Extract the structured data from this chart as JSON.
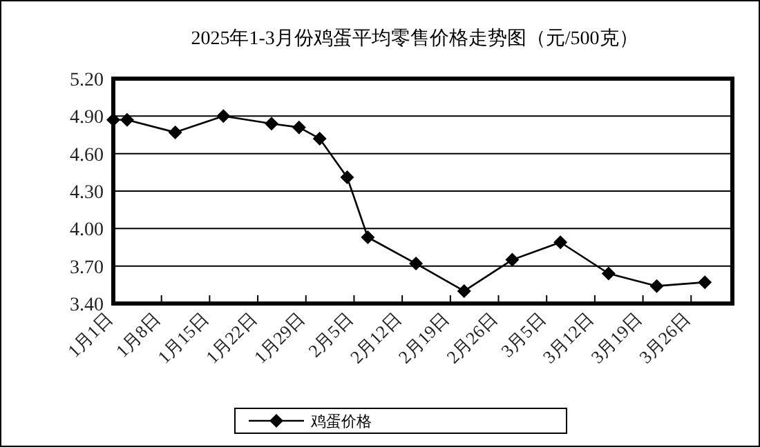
{
  "chart_data": {
    "type": "line",
    "title": "2025年1-3月份鸡蛋平均零售价格走势图（元/500克）",
    "x": [
      "2025-01-01",
      "2025-01-03",
      "2025-01-10",
      "2025-01-17",
      "2025-01-24",
      "2025-01-28",
      "2025-01-31",
      "2025-02-04",
      "2025-02-07",
      "2025-02-14",
      "2025-02-21",
      "2025-02-28",
      "2025-03-07",
      "2025-03-14",
      "2025-03-21",
      "2025-03-28"
    ],
    "series": [
      {
        "name": "鸡蛋价格",
        "color": "#000000",
        "values": [
          4.87,
          4.87,
          4.77,
          4.9,
          4.84,
          4.81,
          4.72,
          4.41,
          3.93,
          3.72,
          3.5,
          3.75,
          3.89,
          3.64,
          3.54,
          3.57
        ]
      }
    ],
    "xlim": [
      "2025-01-01",
      "2025-04-01"
    ],
    "xticks": [
      {
        "value": "2025-01-01",
        "label": "1月1日"
      },
      {
        "value": "2025-01-08",
        "label": "1月8日"
      },
      {
        "value": "2025-01-15",
        "label": "1月15日"
      },
      {
        "value": "2025-01-22",
        "label": "1月22日"
      },
      {
        "value": "2025-01-29",
        "label": "1月29日"
      },
      {
        "value": "2025-02-05",
        "label": "2月5日"
      },
      {
        "value": "2025-02-12",
        "label": "2月12日"
      },
      {
        "value": "2025-02-19",
        "label": "2月19日"
      },
      {
        "value": "2025-02-26",
        "label": "2月26日"
      },
      {
        "value": "2025-03-05",
        "label": "3月5日"
      },
      {
        "value": "2025-03-12",
        "label": "3月12日"
      },
      {
        "value": "2025-03-19",
        "label": "3月19日"
      },
      {
        "value": "2025-03-26",
        "label": "3月26日"
      }
    ],
    "ylim": [
      3.4,
      5.2
    ],
    "yticks": [
      {
        "value": 3.4,
        "label": "3.40"
      },
      {
        "value": 3.7,
        "label": "3.70"
      },
      {
        "value": 4.0,
        "label": "4.00"
      },
      {
        "value": 4.3,
        "label": "4.30"
      },
      {
        "value": 4.6,
        "label": "4.60"
      },
      {
        "value": 4.9,
        "label": "4.90"
      },
      {
        "value": 5.2,
        "label": "5.20"
      }
    ],
    "grid": "y",
    "legend": "bottom",
    "marker": "diamond",
    "line_style": "solid"
  }
}
